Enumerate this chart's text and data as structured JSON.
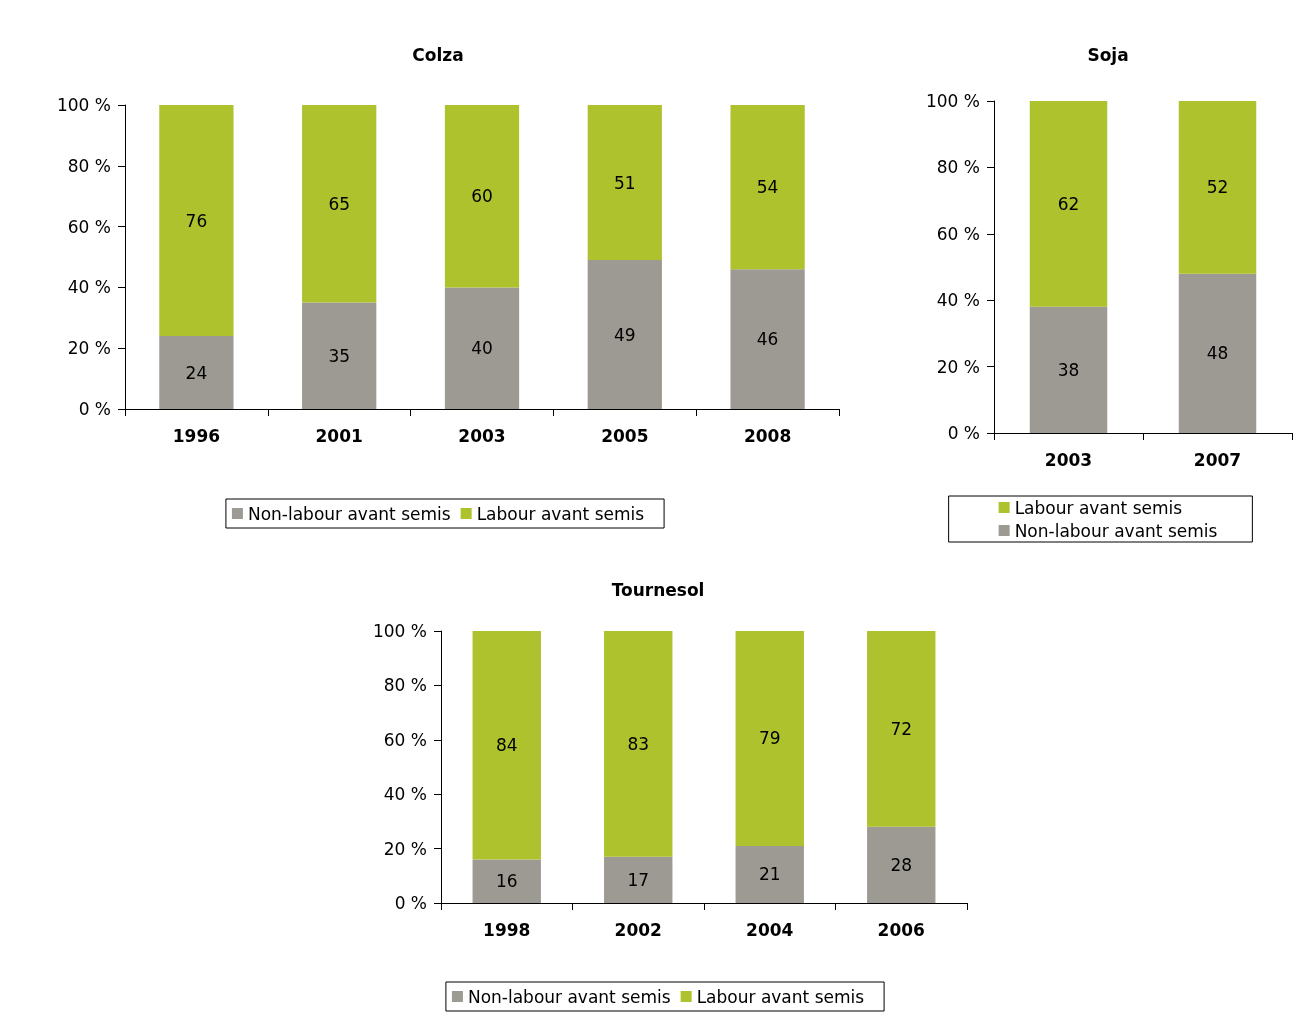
{
  "chart_data": [
    {
      "type": "bar",
      "title": "Colza",
      "categories": [
        "1996",
        "2001",
        "2003",
        "2005",
        "2008"
      ],
      "stacked": true,
      "data_labels": true,
      "grid": false,
      "legend": "bottom",
      "ylim": [
        0,
        100
      ],
      "yticks": [
        {
          "value": 0,
          "label": "0 %"
        },
        {
          "value": 20,
          "label": "20 %"
        },
        {
          "value": 40,
          "label": "40 %"
        },
        {
          "value": 60,
          "label": "60 %"
        },
        {
          "value": 80,
          "label": "80 %"
        },
        {
          "value": 100,
          "label": "100 %"
        }
      ],
      "series": [
        {
          "name": "Non-labour avant semis",
          "color": "#9d9a93",
          "values": [
            24,
            35,
            40,
            49,
            46
          ]
        },
        {
          "name": "Labour avant semis",
          "color": "#adc22d",
          "values": [
            76,
            65,
            60,
            51,
            54
          ]
        }
      ]
    },
    {
      "type": "bar",
      "title": "Soja",
      "categories": [
        "2003",
        "2007"
      ],
      "stacked": true,
      "data_labels": true,
      "grid": false,
      "legend": "bottom",
      "ylim": [
        0,
        100
      ],
      "yticks": [
        {
          "value": 0,
          "label": "0 %"
        },
        {
          "value": 20,
          "label": "20 %"
        },
        {
          "value": 40,
          "label": "40 %"
        },
        {
          "value": 60,
          "label": "60 %"
        },
        {
          "value": 80,
          "label": "80 %"
        },
        {
          "value": 100,
          "label": "100 %"
        }
      ],
      "series": [
        {
          "name": "Non-labour avant semis",
          "color": "#9d9a93",
          "values": [
            38,
            48
          ]
        },
        {
          "name": "Labour avant semis",
          "color": "#adc22d",
          "values": [
            62,
            52
          ]
        }
      ]
    },
    {
      "type": "bar",
      "title": "Tournesol",
      "categories": [
        "1998",
        "2002",
        "2004",
        "2006"
      ],
      "stacked": true,
      "data_labels": true,
      "grid": false,
      "legend": "bottom",
      "ylim": [
        0,
        100
      ],
      "yticks": [
        {
          "value": 0,
          "label": "0 %"
        },
        {
          "value": 20,
          "label": "20 %"
        },
        {
          "value": 40,
          "label": "40 %"
        },
        {
          "value": 60,
          "label": "60 %"
        },
        {
          "value": 80,
          "label": "80 %"
        },
        {
          "value": 100,
          "label": "100 %"
        }
      ],
      "series": [
        {
          "name": "Non-labour avant semis",
          "color": "#9d9a93",
          "values": [
            16,
            17,
            21,
            28
          ]
        },
        {
          "name": "Labour avant semis",
          "color": "#adc22d",
          "values": [
            84,
            83,
            79,
            72
          ]
        }
      ]
    }
  ]
}
